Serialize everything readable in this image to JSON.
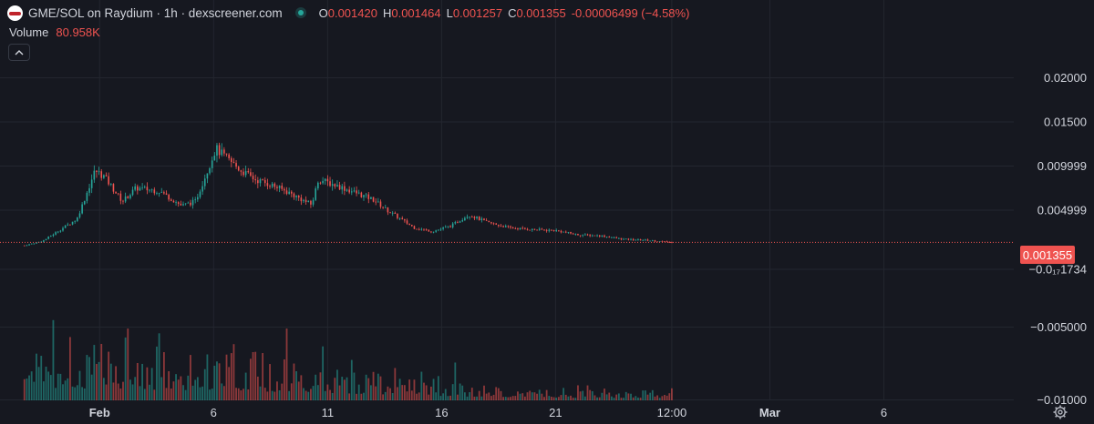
{
  "header": {
    "title": "GME/SOL on Raydium · 1h · dexscreener.com",
    "ohlc": [
      {
        "key": "O",
        "value": "0.001420"
      },
      {
        "key": "H",
        "value": "0.001464"
      },
      {
        "key": "L",
        "value": "0.001257"
      },
      {
        "key": "C",
        "value": "0.001355"
      }
    ],
    "change": "-0.00006499 (−4.58%)",
    "icons": [
      "pair-logo-icon",
      "live-status-icon"
    ]
  },
  "volume": {
    "label": "Volume",
    "value": "80.958K"
  },
  "controls": {
    "collapse_icon": "chevron-up-icon",
    "settings_icon": "gear-icon"
  },
  "last_price": "0.001355",
  "colors": {
    "up": "#26a69a",
    "down": "#ef5350",
    "background": "#161820",
    "grid": "#23262f",
    "text": "#d1d4dc"
  },
  "chart_data": {
    "type": "candlestick",
    "y_ticks": [
      "0.02000",
      "0.01500",
      "0.009999",
      "0.004999",
      "−0.0₁₇1734",
      "−0.005000",
      "−0.01000"
    ],
    "y_tick_values": [
      0.02,
      0.015,
      0.01,
      0.005,
      0,
      -0.005,
      -0.01
    ],
    "x_ticks": [
      {
        "label": "Feb",
        "day": 1
      },
      {
        "label": "6",
        "day": 6
      },
      {
        "label": "11",
        "day": 11
      },
      {
        "label": "16",
        "day": 16
      },
      {
        "label": "21",
        "day": 21
      },
      {
        "label": "12:00",
        "day": 26.1
      },
      {
        "label": "Mar",
        "day": 30.4
      },
      {
        "label": "6",
        "day": 35.4
      }
    ],
    "x_range": [
      -3.37,
      41.1
    ],
    "price_trend": {
      "day": [
        -2.3,
        -1.5,
        0,
        0.3,
        0.8,
        1.2,
        2.0,
        2.6,
        3.6,
        4.6,
        5.2,
        5.8,
        6.1,
        6.6,
        7.2,
        7.8,
        8.6,
        9.3,
        10.3,
        10.6,
        11.5,
        12.2,
        13.0,
        13.6,
        14.2,
        14.8,
        15.6,
        16.4,
        17.2,
        18.0,
        19.0,
        20.0,
        21.0,
        22.0,
        23.0,
        24.0,
        25.0,
        26.1
      ],
      "price": [
        0.001,
        0.0015,
        0.004,
        0.006,
        0.0095,
        0.0088,
        0.006,
        0.0075,
        0.0072,
        0.0055,
        0.006,
        0.01,
        0.012,
        0.0108,
        0.0095,
        0.0085,
        0.0078,
        0.007,
        0.0056,
        0.0085,
        0.0077,
        0.007,
        0.0062,
        0.005,
        0.004,
        0.003,
        0.0026,
        0.0032,
        0.0045,
        0.0036,
        0.003,
        0.0028,
        0.0027,
        0.0022,
        0.0021,
        0.0017,
        0.0016,
        0.001355
      ]
    },
    "volume_trend": {
      "day": [
        -2.3,
        1,
        5,
        10,
        16,
        20,
        26.1
      ],
      "relative_volume": [
        0.55,
        0.48,
        0.45,
        0.35,
        0.18,
        0.12,
        0.1
      ]
    },
    "grid": true,
    "last_price_line": 0.001355
  }
}
